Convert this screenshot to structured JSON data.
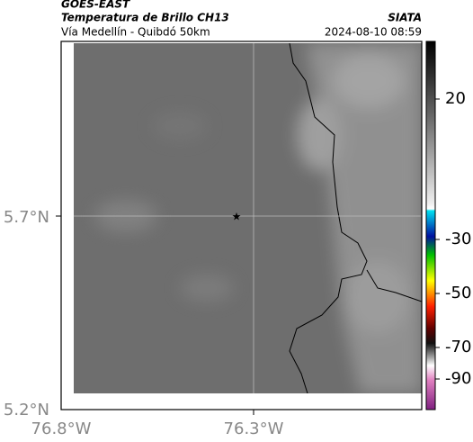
{
  "header": {
    "title": "GOES-EAST",
    "subtitle": "Temperatura de Brillo CH13",
    "location": "Vía Medellín - Quibdó 50km",
    "source": "SIATA",
    "datetime": "2024-08-10 08:59"
  },
  "map": {
    "lat_ticks": [
      "5.7°N",
      "5.2°N"
    ],
    "lon_ticks": [
      "76.8°W",
      "76.3°W"
    ]
  },
  "colorbar": {
    "ticks": [
      20,
      -30,
      -50,
      -70,
      -90
    ]
  }
}
